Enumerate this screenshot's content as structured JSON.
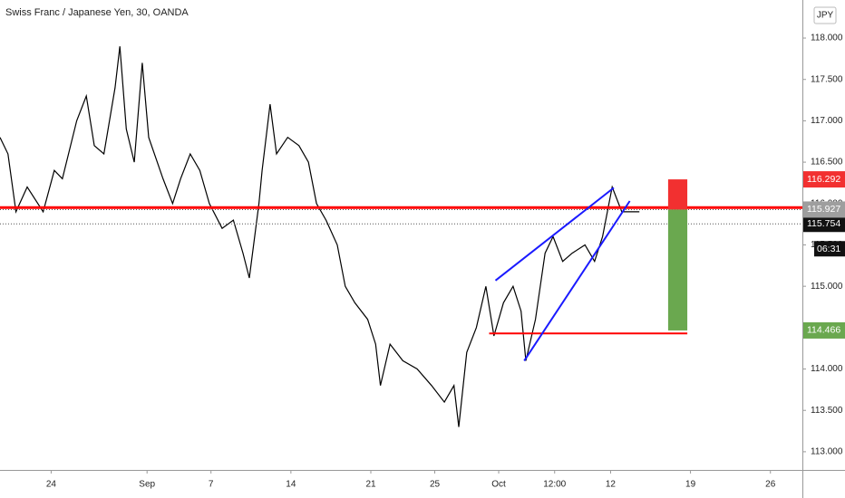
{
  "chart_data": {
    "type": "line",
    "title": "Swiss Franc / Japanese Yen, 30, OANDA",
    "currency": "JPY",
    "xlim": [
      -3.2,
      47.0
    ],
    "ylim": [
      112.78,
      118.46
    ],
    "xticks": [
      {
        "value": 0,
        "label": "24"
      },
      {
        "value": 6,
        "label": "Sep"
      },
      {
        "value": 10,
        "label": "7"
      },
      {
        "value": 15,
        "label": "14"
      },
      {
        "value": 20,
        "label": "21"
      },
      {
        "value": 24,
        "label": "25"
      },
      {
        "value": 28,
        "label": "Oct"
      },
      {
        "value": 31.5,
        "label": "12:00"
      },
      {
        "value": 35,
        "label": "12"
      },
      {
        "value": 40,
        "label": "19"
      },
      {
        "value": 45,
        "label": "26"
      }
    ],
    "yticks": [
      {
        "value": 113,
        "label": "113.000"
      },
      {
        "value": 113.5,
        "label": "113.500"
      },
      {
        "value": 114,
        "label": "114.000"
      },
      {
        "value": 114.5,
        "label": "114.500"
      },
      {
        "value": 115,
        "label": "115.000"
      },
      {
        "value": 115.5,
        "label": "115.500"
      },
      {
        "value": 116,
        "label": "116.000"
      },
      {
        "value": 116.5,
        "label": "116.500"
      },
      {
        "value": 117,
        "label": "117.000"
      },
      {
        "value": 117.5,
        "label": "117.500"
      },
      {
        "value": 118,
        "label": "118.000"
      }
    ],
    "series": [
      {
        "color": "#000000",
        "x": [
          -3.2,
          -2.7,
          -2.2,
          -1.5,
          -0.5,
          0.2,
          0.7,
          1.6,
          2.2,
          2.7,
          3.3,
          4.0,
          4.3,
          4.7,
          5.2,
          5.7,
          6.1,
          7.0,
          7.6,
          8.1,
          8.7,
          9.3,
          9.9,
          10.7,
          11.4,
          12.0,
          12.4,
          13.0,
          13.2,
          13.7,
          14.1,
          14.8,
          15.5,
          16.1,
          16.6,
          17.2,
          17.9,
          18.4,
          19.0,
          19.8,
          20.3,
          20.6,
          21.2,
          22.0,
          22.9,
          23.8,
          24.6,
          25.2,
          25.5,
          26.0,
          26.6,
          27.2,
          27.7,
          28.3,
          28.9,
          29.4,
          29.7,
          30.3,
          30.9,
          31.4,
          32.0,
          32.6,
          33.4,
          34.0,
          34.5,
          35.1,
          35.7,
          36.3,
          36.8
        ],
        "values": [
          116.8,
          116.6,
          115.9,
          116.2,
          115.9,
          116.4,
          116.3,
          117.0,
          117.3,
          116.7,
          116.6,
          117.4,
          117.9,
          116.9,
          116.5,
          117.7,
          116.8,
          116.3,
          116.0,
          116.3,
          116.6,
          116.4,
          116.0,
          115.7,
          115.8,
          115.4,
          115.1,
          116.0,
          116.4,
          117.2,
          116.6,
          116.8,
          116.7,
          116.5,
          116.0,
          115.8,
          115.5,
          115.0,
          114.8,
          114.6,
          114.3,
          113.8,
          114.3,
          114.1,
          114.0,
          113.8,
          113.6,
          113.8,
          113.3,
          114.2,
          114.5,
          115.0,
          114.4,
          114.8,
          115.0,
          114.7,
          114.1,
          114.6,
          115.4,
          115.6,
          115.3,
          115.4,
          115.5,
          115.3,
          115.6,
          116.2,
          115.9,
          115.9,
          115.9
        ]
      }
    ],
    "lines": [
      {
        "color": "#ff0000",
        "x": [
          -3.2,
          47.0
        ],
        "values": [
          115.95,
          115.95
        ]
      },
      {
        "color": "#ff0000",
        "x": [
          27.4,
          39.8
        ],
        "values": [
          114.43,
          114.43
        ]
      },
      {
        "color": "#1a1aff",
        "x": [
          27.8,
          35.2
        ],
        "values": [
          115.07,
          116.19
        ]
      },
      {
        "color": "#1a1aff",
        "x": [
          29.6,
          36.2
        ],
        "values": [
          114.1,
          116.03
        ]
      }
    ],
    "position": {
      "x": [
        38.6,
        39.8
      ],
      "stop": 116.292,
      "entry": 115.927,
      "target": 114.466,
      "stop_color": "#f23030",
      "target_color": "#6aa84f"
    },
    "last_price": 115.754,
    "countdown": "06:31"
  }
}
